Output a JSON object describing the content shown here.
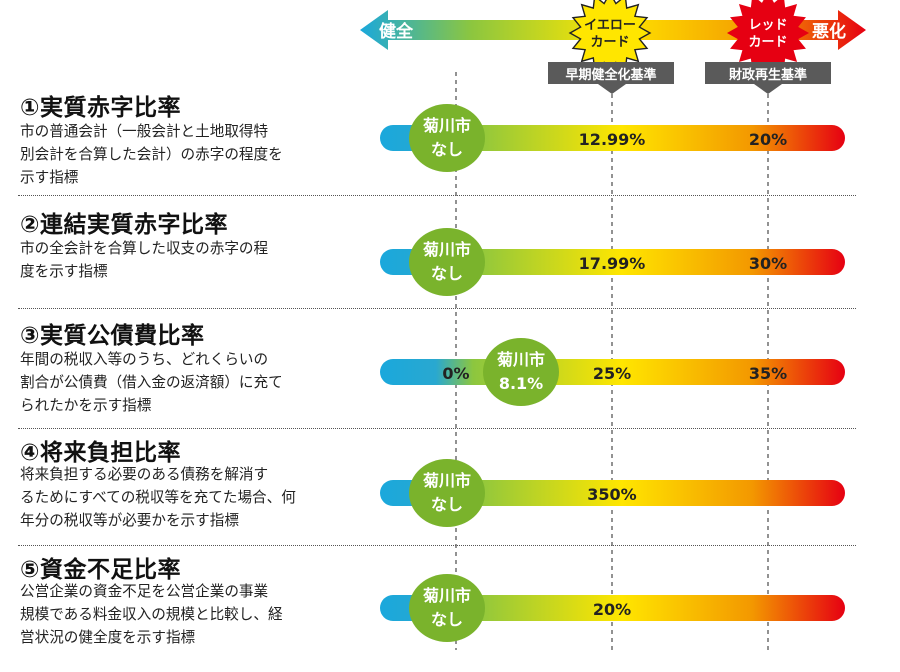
{
  "scale": {
    "left_label": "健全",
    "right_label": "悪化",
    "yellow_card": [
      "イエロー",
      "カード"
    ],
    "red_card": [
      "レッド",
      "カード"
    ],
    "early_criterion": "早期健全化基準",
    "rebuild_criterion": "財政再生基準",
    "colors": {
      "blue": "#1aa8dc",
      "green": "#8cc63f",
      "yellow": "#ffe600",
      "orange": "#f39800",
      "red": "#e60012",
      "grey": "#5a5a5a"
    }
  },
  "rows": [
    {
      "title": "①実質赤字比率",
      "description": "市の普通会計（一般会計と土地取得特\n別会計を合算した会計）の赤字の程度を\n示す指標"
    },
    {
      "title": "②連結実質赤字比率",
      "description": "市の全会計を合算した収支の赤字の程\n度を示す指標"
    },
    {
      "title": "③実質公債費比率",
      "description": "年間の税収入等のうち、どれくらいの\n割合が公債費（借入金の返済額）に充て\nられたかを示す指標"
    },
    {
      "title": "④将来負担比率",
      "description": "将来負担する必要のある債務を解消す\nるためにすべての税収等を充てた場合、何\n年分の税収等が必要かを示す指標"
    },
    {
      "title": "⑤資金不足比率",
      "description": "公営企業の資金不足を公営企業の事業\n規模である料金収入の規模と比較し、経\n営状況の健全度を示す指標"
    }
  ],
  "chart_data": {
    "type": "table",
    "title": "",
    "scale_direction": {
      "left": "健全",
      "right": "悪化"
    },
    "rows": [
      {
        "indicator": "①実質赤字比率",
        "city_label": "菊川市",
        "city_value": "なし",
        "zero_label": null,
        "early_criterion": "12.99%",
        "rebuild_criterion": "20%"
      },
      {
        "indicator": "②連結実質赤字比率",
        "city_label": "菊川市",
        "city_value": "なし",
        "zero_label": null,
        "early_criterion": "17.99%",
        "rebuild_criterion": "30%"
      },
      {
        "indicator": "③実質公債費比率",
        "city_label": "菊川市",
        "city_value": "8.1%",
        "zero_label": "0%",
        "early_criterion": "25%",
        "rebuild_criterion": "35%"
      },
      {
        "indicator": "④将来負担比率",
        "city_label": "菊川市",
        "city_value": "なし",
        "zero_label": null,
        "early_criterion": "350%",
        "rebuild_criterion": null
      },
      {
        "indicator": "⑤資金不足比率",
        "city_label": "菊川市",
        "city_value": "なし",
        "zero_label": null,
        "early_criterion": "20%",
        "rebuild_criterion": null
      }
    ]
  }
}
